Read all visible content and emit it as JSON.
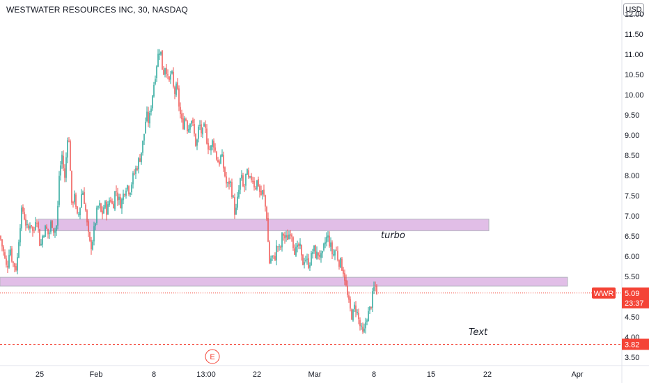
{
  "header": {
    "title": "WESTWATER RESOURCES INC, 30, NASDAQ",
    "currency": "USD"
  },
  "chart_data": {
    "type": "candlestick",
    "symbol": "WWR",
    "interval": "30",
    "y_ticks": [
      3.5,
      4.0,
      4.5,
      5.0,
      5.5,
      6.0,
      6.5,
      7.0,
      7.5,
      8.0,
      8.5,
      9.0,
      9.5,
      10.0,
      10.5,
      11.0,
      11.5,
      12.0
    ],
    "x_ticks": [
      {
        "label": "25",
        "t": 57
      },
      {
        "label": "Feb",
        "t": 138
      },
      {
        "label": "8",
        "t": 221
      },
      {
        "label": "13:00",
        "t": 296
      },
      {
        "label": "22",
        "t": 369
      },
      {
        "label": "Mar",
        "t": 452
      },
      {
        "label": "8",
        "t": 537
      },
      {
        "label": "15",
        "t": 619
      },
      {
        "label": "22",
        "t": 700
      },
      {
        "label": "Apr",
        "t": 829
      }
    ],
    "price_path": [
      [
        0,
        6.5
      ],
      [
        5,
        6.1
      ],
      [
        10,
        5.65
      ],
      [
        14,
        6.3
      ],
      [
        18,
        5.85
      ],
      [
        24,
        5.7
      ],
      [
        28,
        6.7
      ],
      [
        32,
        7.2
      ],
      [
        36,
        6.9
      ],
      [
        40,
        6.6
      ],
      [
        44,
        6.9
      ],
      [
        48,
        6.5
      ],
      [
        52,
        7.1
      ],
      [
        58,
        6.2
      ],
      [
        62,
        6.6
      ],
      [
        66,
        6.7
      ],
      [
        70,
        6.5
      ],
      [
        74,
        6.9
      ],
      [
        78,
        6.6
      ],
      [
        82,
        6.8
      ],
      [
        85,
        8.0
      ],
      [
        89,
        8.5
      ],
      [
        93,
        7.9
      ],
      [
        97,
        9.0
      ],
      [
        100,
        8.7
      ],
      [
        103,
        7.2
      ],
      [
        107,
        7.6
      ],
      [
        110,
        6.9
      ],
      [
        114,
        7.1
      ],
      [
        118,
        7.7
      ],
      [
        122,
        7.3
      ],
      [
        126,
        6.6
      ],
      [
        130,
        6.2
      ],
      [
        134,
        6.5
      ],
      [
        138,
        7.0
      ],
      [
        142,
        7.3
      ],
      [
        146,
        7.0
      ],
      [
        150,
        7.3
      ],
      [
        154,
        7.1
      ],
      [
        158,
        7.5
      ],
      [
        162,
        7.2
      ],
      [
        166,
        7.7
      ],
      [
        170,
        7.4
      ],
      [
        174,
        7.3
      ],
      [
        178,
        7.6
      ],
      [
        182,
        7.8
      ],
      [
        186,
        7.6
      ],
      [
        190,
        7.9
      ],
      [
        194,
        8.1
      ],
      [
        198,
        8.3
      ],
      [
        202,
        8.5
      ],
      [
        206,
        8.9
      ],
      [
        210,
        9.5
      ],
      [
        214,
        9.3
      ],
      [
        218,
        9.9
      ],
      [
        222,
        10.4
      ],
      [
        226,
        10.9
      ],
      [
        230,
        11.2
      ],
      [
        234,
        10.5
      ],
      [
        238,
        10.8
      ],
      [
        242,
        10.2
      ],
      [
        246,
        10.6
      ],
      [
        250,
        10.0
      ],
      [
        254,
        10.2
      ],
      [
        258,
        9.6
      ],
      [
        262,
        9.2
      ],
      [
        266,
        9.5
      ],
      [
        270,
        9.1
      ],
      [
        274,
        9.5
      ],
      [
        278,
        9.1
      ],
      [
        282,
        8.7
      ],
      [
        286,
        9.3
      ],
      [
        290,
        9.0
      ],
      [
        294,
        9.2
      ],
      [
        298,
        8.8
      ],
      [
        302,
        8.6
      ],
      [
        306,
        8.9
      ],
      [
        310,
        8.5
      ],
      [
        314,
        8.3
      ],
      [
        318,
        8.5
      ],
      [
        322,
        8.1
      ],
      [
        326,
        7.7
      ],
      [
        330,
        7.9
      ],
      [
        334,
        7.5
      ],
      [
        338,
        7.0
      ],
      [
        342,
        7.5
      ],
      [
        346,
        8.0
      ],
      [
        350,
        7.6
      ],
      [
        354,
        8.1
      ],
      [
        358,
        7.8
      ],
      [
        362,
        8.0
      ],
      [
        366,
        7.7
      ],
      [
        370,
        7.9
      ],
      [
        374,
        7.5
      ],
      [
        378,
        7.6
      ],
      [
        382,
        7.1
      ],
      [
        384,
        6.9
      ],
      [
        386,
        5.8
      ],
      [
        390,
        6.0
      ],
      [
        394,
        5.9
      ],
      [
        398,
        6.3
      ],
      [
        402,
        6.1
      ],
      [
        406,
        6.6
      ],
      [
        410,
        6.4
      ],
      [
        414,
        6.5
      ],
      [
        418,
        6.7
      ],
      [
        422,
        6.2
      ],
      [
        426,
        6.1
      ],
      [
        430,
        6.3
      ],
      [
        434,
        5.8
      ],
      [
        438,
        6.0
      ],
      [
        442,
        5.8
      ],
      [
        446,
        5.9
      ],
      [
        450,
        6.2
      ],
      [
        454,
        6.0
      ],
      [
        458,
        6.1
      ],
      [
        462,
        5.9
      ],
      [
        466,
        6.3
      ],
      [
        470,
        6.5
      ],
      [
        474,
        6.3
      ],
      [
        478,
        6.0
      ],
      [
        482,
        6.2
      ],
      [
        486,
        5.9
      ],
      [
        490,
        5.8
      ],
      [
        494,
        5.6
      ],
      [
        498,
        5.1
      ],
      [
        502,
        4.7
      ],
      [
        506,
        4.5
      ],
      [
        510,
        4.8
      ],
      [
        514,
        4.5
      ],
      [
        518,
        4.2
      ],
      [
        522,
        4.0
      ],
      [
        526,
        4.5
      ],
      [
        530,
        4.6
      ],
      [
        534,
        4.9
      ],
      [
        538,
        5.3
      ],
      [
        542,
        5.1
      ]
    ],
    "zones": [
      {
        "t_start": 55,
        "t_end": 702,
        "y_low": 6.63,
        "y_high": 6.92
      },
      {
        "t_start": 0,
        "t_end": 815,
        "y_low": 5.26,
        "y_high": 5.48
      }
    ],
    "annotations": [
      {
        "text": "turbo",
        "t": 547,
        "y": 6.45
      },
      {
        "text": "Text",
        "t": 673,
        "y": 4.05
      },
      {
        "text": "E",
        "t": 305,
        "y": 3.5
      }
    ],
    "last_price": {
      "symbol": "WWR",
      "value": "5.09",
      "countdown": "23:37",
      "y": 5.09
    },
    "low_marker": {
      "value": "3.82",
      "y": 3.82
    },
    "colors": {
      "up": "#26a69a",
      "down": "#ef5350",
      "zone_fill": "#e1bee7",
      "zone_border": "#b2b5be",
      "price_label": "#f44336"
    }
  }
}
